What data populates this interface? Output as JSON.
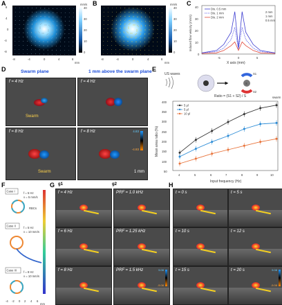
{
  "panels": {
    "A": {
      "letter": "A",
      "axis_x_ticks": [
        "-8",
        "-4",
        "0",
        "4",
        "8"
      ],
      "axis_y_ticks": [
        "8",
        "4",
        "0",
        "-4",
        "-8"
      ],
      "cbar_unit": "mm/s",
      "cbar_ticks": [
        "40",
        "30",
        "20",
        "10",
        "0"
      ],
      "x_unit": "mm"
    },
    "B": {
      "letter": "B",
      "axis_x_ticks": [
        "-8",
        "-4",
        "0",
        "4",
        "8"
      ],
      "cbar_unit": "mm/s",
      "cbar_ticks": [
        "40",
        "30",
        "20",
        "10",
        "0"
      ],
      "x_unit": "mm"
    },
    "C": {
      "letter": "C",
      "ylabel": "Induced flow velocity (mm/s)",
      "xlabel": "X axis (mm)",
      "legend": [
        "Dis. 0.5 mm",
        "Dis. 1 mm",
        "Dis. 2 mm"
      ],
      "right_legend": [
        "2 mm",
        "1 mm",
        "0.5 mm"
      ],
      "x_ticks": [
        "-5",
        "0",
        "5"
      ],
      "y_ticks": [
        "40",
        "30",
        "20",
        "10",
        "0"
      ]
    },
    "D": {
      "letter": "D",
      "title_left": "Swarm plane",
      "title_right": "1 mm above the swarm plane",
      "f1": "f = 4 Hz",
      "f2": "f = 8 Hz",
      "swarm": "Swarm",
      "scale": "1 mm",
      "cb_top": "4.83",
      "cb_bot": "-4.83"
    },
    "E": {
      "letter": "E",
      "us_label": "US waves",
      "ratio_label": "Ratio = (S1 + S2) / S",
      "ratio_sub": "swarm",
      "s1": "S1",
      "s2": "S2",
      "s": "S",
      "ylabel": "Mean area ratio (%)",
      "xlabel": "Input frequency (Hz)",
      "legend": [
        "5 μl",
        "5 μl",
        "10 μl"
      ],
      "x_ticks": [
        "4",
        "5",
        "6",
        "7",
        "8",
        "9",
        "10"
      ],
      "y_ticks": [
        "400",
        "350",
        "300",
        "250",
        "200",
        "150",
        "100",
        "50"
      ]
    },
    "F": {
      "letter": "F",
      "cases": [
        {
          "name": "Case I",
          "f": "f = 5 Hz",
          "v": "v = 5 mm/s"
        },
        {
          "name": "Case II",
          "f": "f = 5 Hz",
          "v": "v = 10 mm/s"
        },
        {
          "name": "Case III",
          "f": "f = 8 Hz",
          "v": "v = 10 mm/s"
        }
      ],
      "rbcs": "RBCs",
      "x_unit": "mm",
      "x_ticks": [
        "-4",
        "-2",
        "0",
        "2",
        "4",
        "6"
      ]
    },
    "G": {
      "letter": "G",
      "g1": "g1",
      "g2": "g2",
      "left": [
        "f = 4 Hz",
        "f = 6 Hz",
        "f = 8 Hz"
      ],
      "right": [
        "PRF = 1.0 kHz",
        "PRF = 1.25 kHz",
        "PRF = 1.5 kHz"
      ],
      "cb_top": "5.08",
      "cb_bot": "-5.08"
    },
    "H": {
      "letter": "H",
      "left": [
        "t = 0 s",
        "t = 10 s",
        "t = 15 s"
      ],
      "right": [
        "t = 5 s",
        "t = 12 s",
        "t = 20 s"
      ],
      "cb_top": "5.08",
      "cb_bot": "-5.08"
    }
  },
  "chart_data": [
    {
      "type": "line",
      "title": "",
      "xlabel": "X axis (mm)",
      "ylabel": "Induced flow velocity (mm/s)",
      "xlim": [
        -10,
        10
      ],
      "ylim": [
        0,
        40
      ],
      "series": [
        {
          "name": "Dis. 0.5 mm",
          "x": [
            -10,
            -6,
            -4,
            -2,
            -1,
            0,
            1,
            2,
            4,
            6,
            10
          ],
          "values": [
            1,
            3,
            8,
            18,
            35,
            5,
            35,
            18,
            8,
            3,
            1
          ]
        },
        {
          "name": "Dis. 1 mm",
          "x": [
            -10,
            -6,
            -4,
            -2,
            -1,
            0,
            1,
            2,
            4,
            6,
            10
          ],
          "values": [
            1,
            2,
            5,
            12,
            22,
            4,
            22,
            12,
            5,
            2,
            1
          ]
        },
        {
          "name": "Dis. 2 mm",
          "x": [
            -10,
            -6,
            -4,
            -2,
            -1,
            0,
            1,
            2,
            4,
            6,
            10
          ],
          "values": [
            0.5,
            1,
            3,
            7,
            10,
            3,
            10,
            7,
            3,
            1,
            0.5
          ]
        }
      ]
    },
    {
      "type": "line",
      "title": "",
      "xlabel": "Input frequency (Hz)",
      "ylabel": "Mean area ratio (%)",
      "ylim": [
        50,
        400
      ],
      "categories": [
        4,
        5,
        6,
        7,
        8,
        9,
        10
      ],
      "series": [
        {
          "name": "5 μl",
          "values": [
            140,
            205,
            250,
            295,
            335,
            365,
            380
          ],
          "color": "#333333"
        },
        {
          "name": "5 μl",
          "values": [
            120,
            160,
            195,
            225,
            260,
            285,
            290
          ],
          "color": "#2a8bd6"
        },
        {
          "name": "10 μl",
          "values": [
            85,
            110,
            135,
            155,
            175,
            195,
            210
          ],
          "color": "#e8733a"
        }
      ]
    }
  ]
}
